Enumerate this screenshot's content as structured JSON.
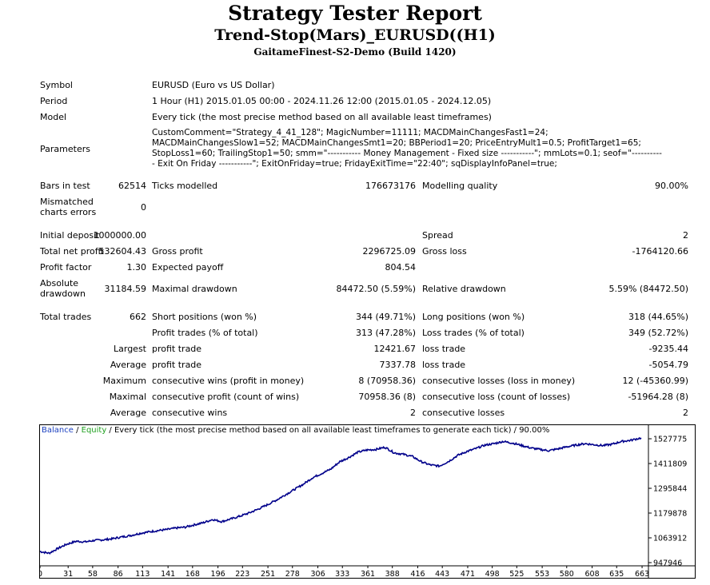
{
  "header": {
    "title": "Strategy Tester Report",
    "subtitle": "Trend-Stop(Mars)_EURUSD((H1)",
    "server": "GaitameFinest-S2-Demo (Build 1420)"
  },
  "info": {
    "symbol_label": "Symbol",
    "symbol": "EURUSD (Euro vs US Dollar)",
    "period_label": "Period",
    "period": "1 Hour (H1) 2015.01.05 00:00 - 2024.11.26 12:00 (2015.01.05 - 2024.12.05)",
    "model_label": "Model",
    "model": "Every tick (the most precise method based on all available least timeframes)",
    "parameters_label": "Parameters",
    "parameters": "CustomComment=\"Strategy_4_41_128\"; MagicNumber=11111; MACDMainChangesFast1=24; MACDMainChangesSlow1=52; MACDMainChangesSmt1=20; BBPeriod1=20; PriceEntryMult1=0.5; ProfitTarget1=65; StopLoss1=60; TrailingStop1=50; smm=\"----------- Money Management - Fixed size -----------\"; mmLots=0.1; seof=\"----------- Exit On Friday -----------\"; ExitOnFriday=true; FridayExitTime=\"22:40\"; sqDisplayInfoPanel=true;"
  },
  "stats": {
    "bars_label": "Bars in test",
    "bars": "62514",
    "ticks_label": "Ticks modelled",
    "ticks": "176673176",
    "quality_label": "Modelling quality",
    "quality": "90.00%",
    "mismatch_label": "Mismatched charts errors",
    "mismatch": "0",
    "deposit_label": "Initial deposit",
    "deposit": "1000000.00",
    "spread_label": "Spread",
    "spread": "2",
    "netprofit_label": "Total net profit",
    "netprofit": "532604.43",
    "grossprofit_label": "Gross profit",
    "grossprofit": "2296725.09",
    "grossloss_label": "Gross loss",
    "grossloss": "-1764120.66",
    "pf_label": "Profit factor",
    "pf": "1.30",
    "payoff_label": "Expected payoff",
    "payoff": "804.54",
    "absdd_label": "Absolute drawdown",
    "absdd": "31184.59",
    "maxdd_label": "Maximal drawdown",
    "maxdd": "84472.50 (5.59%)",
    "reldd_label": "Relative drawdown",
    "reldd": "5.59% (84472.50)",
    "trades_label": "Total trades",
    "trades": "662",
    "short_label": "Short positions (won %)",
    "short": "344 (49.71%)",
    "long_label": "Long positions (won %)",
    "long": "318 (44.65%)",
    "profit_trades_label": "Profit trades (% of total)",
    "profit_trades": "313 (47.28%)",
    "loss_trades_label": "Loss trades (% of total)",
    "loss_trades": "349 (52.72%)",
    "largest_label": "Largest",
    "largest_profit_label": "profit trade",
    "largest_profit": "12421.67",
    "largest_loss_label": "loss trade",
    "largest_loss": "-9235.44",
    "average_label": "Average",
    "average_profit_label": "profit trade",
    "average_profit": "7337.78",
    "average_loss_label": "loss trade",
    "average_loss": "-5054.79",
    "maximum_label": "Maximum",
    "max_cons_wins_label": "consecutive wins (profit in money)",
    "max_cons_wins": "8 (70958.36)",
    "max_cons_losses_label": "consecutive losses (loss in money)",
    "max_cons_losses": "12 (-45360.99)",
    "maximal_label": "Maximal",
    "maximal_profit_label": "consecutive profit (count of wins)",
    "maximal_profit": "70958.36 (8)",
    "maximal_loss_label": "consecutive loss (count of losses)",
    "maximal_loss": "-51964.28 (8)",
    "avg_cons_label": "Average",
    "avg_cons_wins_label": "consecutive wins",
    "avg_cons_wins": "2",
    "avg_cons_losses_label": "consecutive losses",
    "avg_cons_losses": "2"
  },
  "legend": {
    "balance": "Balance",
    "sep": " / ",
    "equity": "Equity",
    "rest": " / Every tick (the most precise method based on all available least timeframes to generate each tick) / 90.00%"
  },
  "chart_data": {
    "type": "line",
    "xlabel": "",
    "ylabel": "",
    "x_ticks": [
      "0",
      "31",
      "58",
      "86",
      "113",
      "141",
      "168",
      "196",
      "223",
      "251",
      "278",
      "306",
      "333",
      "361",
      "388",
      "416",
      "443",
      "471",
      "498",
      "525",
      "553",
      "580",
      "608",
      "635",
      "663"
    ],
    "y_ticks": [
      "1527775",
      "1411809",
      "1295844",
      "1179878",
      "1063912",
      "947946"
    ],
    "xlim": [
      0,
      670
    ],
    "ylim": [
      947946,
      1550000
    ],
    "colors": {
      "balance": "#00008b",
      "equity": "#008000"
    },
    "series": [
      {
        "name": "Balance",
        "x": [
          0,
          10,
          20,
          30,
          40,
          50,
          60,
          70,
          80,
          90,
          100,
          110,
          120,
          130,
          140,
          150,
          160,
          170,
          180,
          190,
          200,
          210,
          220,
          230,
          240,
          250,
          260,
          270,
          280,
          290,
          300,
          310,
          320,
          330,
          340,
          350,
          360,
          370,
          380,
          390,
          400,
          410,
          420,
          430,
          440,
          450,
          460,
          470,
          480,
          490,
          500,
          510,
          520,
          530,
          540,
          550,
          560,
          570,
          580,
          590,
          600,
          610,
          620,
          630,
          640,
          650,
          662
        ],
        "y": [
          1000000,
          992000,
          1015000,
          1035000,
          1048000,
          1045000,
          1052000,
          1055000,
          1060000,
          1068000,
          1075000,
          1085000,
          1092000,
          1098000,
          1103000,
          1110000,
          1114000,
          1125000,
          1135000,
          1150000,
          1140000,
          1152000,
          1165000,
          1180000,
          1198000,
          1218000,
          1240000,
          1265000,
          1290000,
          1315000,
          1345000,
          1365000,
          1385000,
          1420000,
          1440000,
          1465000,
          1475000,
          1478000,
          1488000,
          1462000,
          1455000,
          1445000,
          1420000,
          1405000,
          1400000,
          1422000,
          1450000,
          1468000,
          1482000,
          1498000,
          1505000,
          1515000,
          1508000,
          1497000,
          1485000,
          1478000,
          1472000,
          1480000,
          1490000,
          1498000,
          1505000,
          1500000,
          1496000,
          1502000,
          1515000,
          1520000,
          1532000
        ]
      }
    ]
  }
}
